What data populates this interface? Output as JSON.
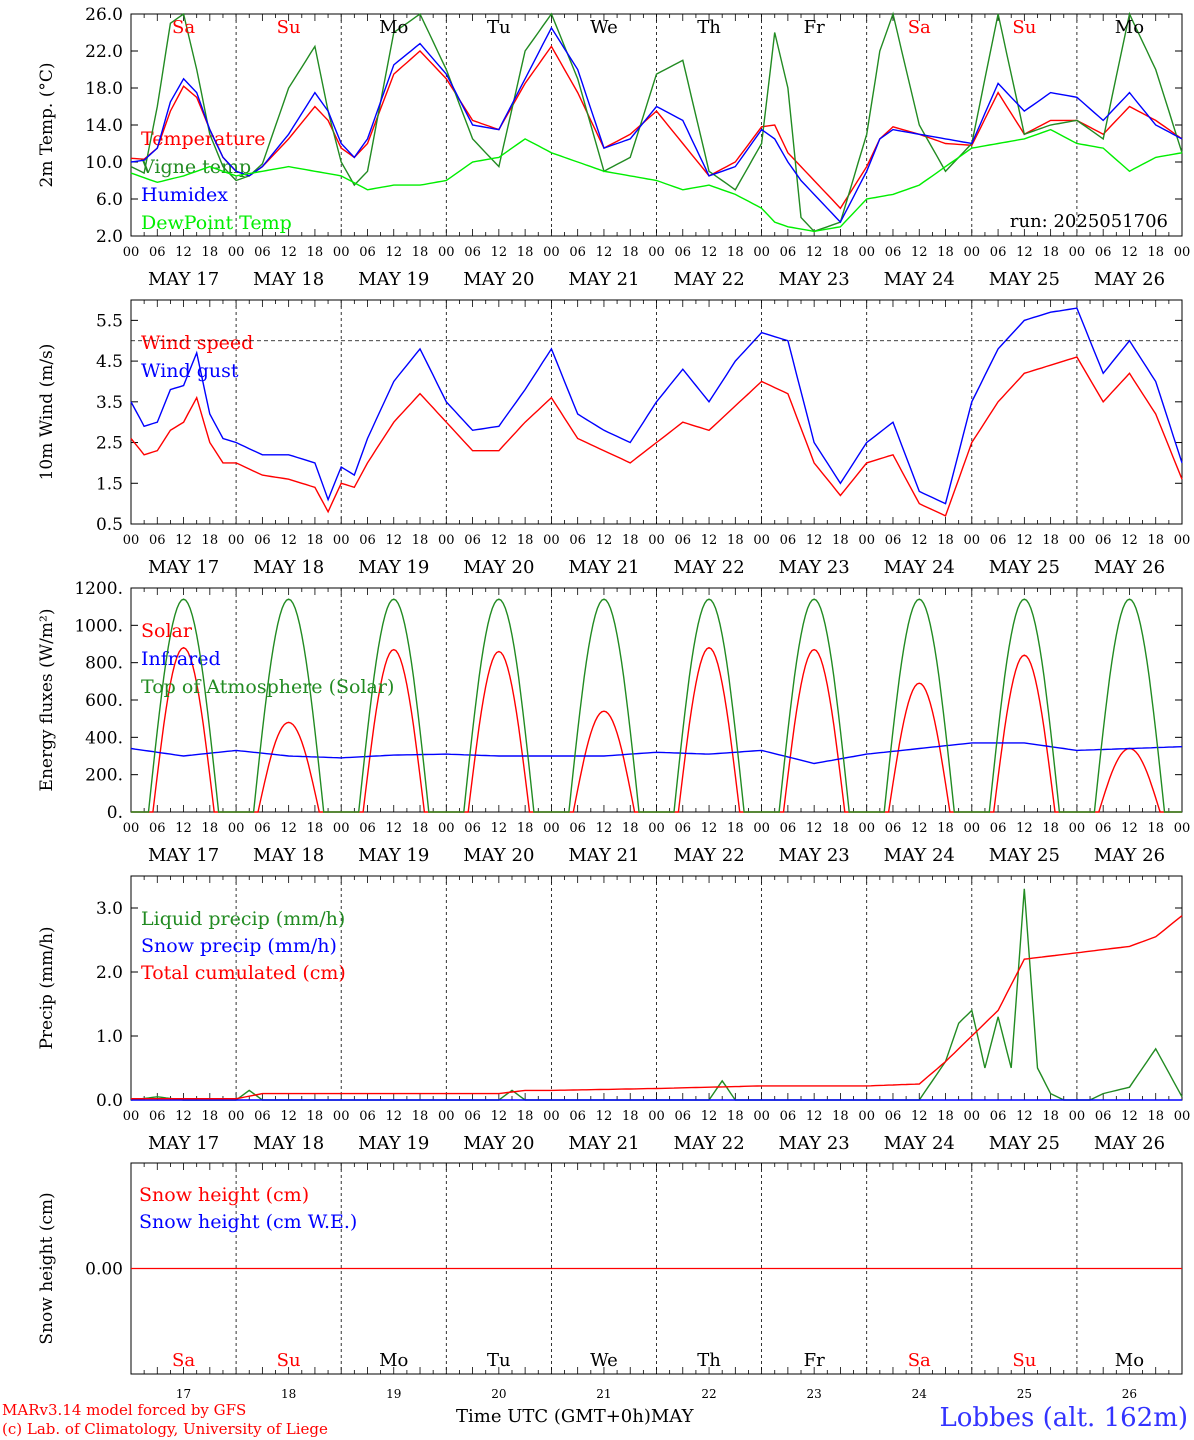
{
  "chart_data": [
    {
      "type": "line",
      "ylabel": "2m Temp. (°C)",
      "ylim": [
        2,
        26
      ],
      "yticks": [
        "26.0",
        "22.0",
        "18.0",
        "14.0",
        "10.0",
        "6.0",
        "2.0"
      ],
      "run_label": "run: 2025051706",
      "series": [
        {
          "name": "Temperature",
          "color": "#ff0000",
          "x_hours": [
            0,
            3,
            6,
            9,
            12,
            15,
            18,
            21,
            24,
            27,
            30,
            36,
            42,
            45,
            48,
            51,
            54,
            60,
            66,
            72,
            78,
            84,
            90,
            96,
            102,
            108,
            114,
            120,
            126,
            132,
            138,
            144,
            147,
            150,
            153,
            156,
            162,
            168,
            171,
            174,
            180,
            186,
            192,
            198,
            204,
            210,
            216,
            222,
            228,
            234,
            240
          ],
          "values": [
            10.4,
            10.3,
            11.5,
            15.5,
            18.2,
            17.0,
            13.5,
            10.5,
            9.0,
            8.5,
            9.5,
            12.5,
            16.0,
            14.5,
            11.5,
            10.5,
            12.0,
            19.5,
            22.0,
            19.0,
            14.5,
            13.5,
            18.5,
            22.5,
            17.5,
            11.5,
            13.0,
            15.5,
            12.0,
            8.5,
            10.0,
            13.8,
            14.0,
            11.0,
            9.5,
            8.0,
            5.0,
            9.5,
            12.5,
            13.8,
            13.0,
            12.0,
            11.8,
            17.5,
            13.0,
            14.5,
            14.5,
            13.0,
            16.0,
            14.5,
            12.5
          ]
        },
        {
          "name": "Vigne temp",
          "color": "#228b22",
          "x_hours": [
            0,
            3,
            6,
            9,
            12,
            15,
            18,
            21,
            24,
            27,
            30,
            36,
            42,
            45,
            48,
            51,
            54,
            60,
            66,
            72,
            78,
            84,
            90,
            96,
            102,
            108,
            114,
            120,
            126,
            132,
            138,
            144,
            147,
            150,
            153,
            156,
            162,
            168,
            171,
            174,
            180,
            186,
            192,
            198,
            204,
            210,
            216,
            222,
            228,
            234,
            240
          ],
          "values": [
            9.5,
            8.8,
            16.0,
            25.0,
            26.0,
            20.0,
            13.0,
            9.5,
            8.0,
            8.5,
            9.8,
            18.0,
            22.5,
            15.5,
            10.0,
            7.5,
            9.0,
            24.0,
            26.0,
            20.0,
            12.5,
            9.5,
            22.0,
            26.0,
            19.0,
            9.0,
            10.5,
            19.5,
            21.0,
            9.0,
            7.0,
            12.0,
            24.0,
            18.0,
            4.0,
            2.5,
            3.5,
            13.0,
            22.0,
            26.0,
            14.0,
            9.0,
            12.0,
            26.0,
            13.0,
            14.0,
            14.5,
            12.5,
            26.0,
            20.0,
            11.0
          ]
        },
        {
          "name": "Humidex",
          "color": "#0000ff",
          "x_hours": [
            0,
            3,
            6,
            9,
            12,
            15,
            18,
            21,
            24,
            27,
            30,
            36,
            42,
            45,
            48,
            51,
            54,
            60,
            66,
            72,
            78,
            84,
            90,
            96,
            102,
            108,
            114,
            120,
            126,
            132,
            138,
            144,
            147,
            150,
            153,
            156,
            162,
            168,
            171,
            174,
            180,
            186,
            192,
            198,
            204,
            210,
            216,
            222,
            228,
            234,
            240
          ],
          "values": [
            10.0,
            10.2,
            11.5,
            16.5,
            19.0,
            17.5,
            13.5,
            10.5,
            9.0,
            8.5,
            9.5,
            13.0,
            17.5,
            15.5,
            12.0,
            10.5,
            12.5,
            20.5,
            22.8,
            19.5,
            14.0,
            13.5,
            19.0,
            24.5,
            20.0,
            11.5,
            12.5,
            16.0,
            14.5,
            8.5,
            9.5,
            13.5,
            12.5,
            10.0,
            8.0,
            6.5,
            3.5,
            9.0,
            12.5,
            13.5,
            13.0,
            12.5,
            12.0,
            18.5,
            15.5,
            17.5,
            17.0,
            14.5,
            17.5,
            14.0,
            12.5
          ]
        },
        {
          "name": "DewPoint Temp",
          "color": "#00ee00",
          "x_hours": [
            0,
            6,
            12,
            18,
            24,
            30,
            36,
            42,
            48,
            54,
            60,
            66,
            72,
            78,
            84,
            90,
            96,
            102,
            108,
            114,
            120,
            126,
            132,
            138,
            144,
            147,
            150,
            156,
            162,
            168,
            174,
            180,
            186,
            192,
            198,
            204,
            210,
            216,
            222,
            228,
            234,
            240
          ],
          "values": [
            8.8,
            7.8,
            8.5,
            9.5,
            8.5,
            9.0,
            9.5,
            9.0,
            8.5,
            7.0,
            7.5,
            7.5,
            8.0,
            10.0,
            10.5,
            12.5,
            11.0,
            10.0,
            9.0,
            8.5,
            8.0,
            7.0,
            7.5,
            6.5,
            5.0,
            3.5,
            3.0,
            2.5,
            3.0,
            6.0,
            6.5,
            7.5,
            9.5,
            11.5,
            12.0,
            12.5,
            13.5,
            12.0,
            11.5,
            9.0,
            10.5,
            11.0
          ]
        }
      ]
    },
    {
      "type": "line",
      "ylabel": "10m Wind (m/s)",
      "ylim": [
        0.5,
        6.0
      ],
      "yticks": [
        "5.5",
        "4.5",
        "3.5",
        "2.5",
        "1.5",
        "0.5"
      ],
      "reference_line": 5.0,
      "series": [
        {
          "name": "Wind speed",
          "color": "#ff0000",
          "x_hours": [
            0,
            3,
            6,
            9,
            12,
            15,
            18,
            21,
            24,
            30,
            36,
            42,
            45,
            48,
            51,
            54,
            60,
            66,
            72,
            78,
            84,
            90,
            96,
            102,
            108,
            114,
            120,
            126,
            132,
            138,
            144,
            150,
            156,
            162,
            168,
            174,
            180,
            186,
            192,
            198,
            204,
            210,
            216,
            222,
            228,
            234,
            240
          ],
          "values": [
            2.6,
            2.2,
            2.3,
            2.8,
            3.0,
            3.6,
            2.5,
            2.0,
            2.0,
            1.7,
            1.6,
            1.4,
            0.8,
            1.5,
            1.4,
            2.0,
            3.0,
            3.7,
            3.0,
            2.3,
            2.3,
            3.0,
            3.6,
            2.6,
            2.3,
            2.0,
            2.5,
            3.0,
            2.8,
            3.4,
            4.0,
            3.7,
            2.0,
            1.2,
            2.0,
            2.2,
            1.0,
            0.7,
            2.5,
            3.5,
            4.2,
            4.4,
            4.6,
            3.5,
            4.2,
            3.2,
            1.6
          ]
        },
        {
          "name": "Wind gust",
          "color": "#0000ff",
          "x_hours": [
            0,
            3,
            6,
            9,
            12,
            15,
            18,
            21,
            24,
            30,
            36,
            42,
            45,
            48,
            51,
            54,
            60,
            66,
            72,
            78,
            84,
            90,
            96,
            102,
            108,
            114,
            120,
            126,
            132,
            138,
            144,
            150,
            156,
            162,
            168,
            174,
            180,
            186,
            192,
            198,
            204,
            210,
            216,
            222,
            228,
            234,
            240
          ],
          "values": [
            3.5,
            2.9,
            3.0,
            3.8,
            3.9,
            4.7,
            3.2,
            2.6,
            2.5,
            2.2,
            2.2,
            2.0,
            1.1,
            1.9,
            1.7,
            2.6,
            4.0,
            4.8,
            3.5,
            2.8,
            2.9,
            3.8,
            4.8,
            3.2,
            2.8,
            2.5,
            3.5,
            4.3,
            3.5,
            4.5,
            5.2,
            5.0,
            2.5,
            1.5,
            2.5,
            3.0,
            1.3,
            1.0,
            3.5,
            4.8,
            5.5,
            5.7,
            5.8,
            4.2,
            5.0,
            4.0,
            2.0
          ]
        }
      ]
    },
    {
      "type": "line",
      "ylabel": "Energy fluxes (W/m²)",
      "ylim": [
        0,
        1200
      ],
      "yticks": [
        "1200.",
        "1000.",
        "800.",
        "600.",
        "400.",
        "200.",
        "0."
      ],
      "series": [
        {
          "name": "Solar",
          "color": "#ff0000",
          "daily_peak": [
            880,
            480,
            870,
            860,
            540,
            880,
            870,
            690,
            840,
            340
          ]
        },
        {
          "name": "Infrared",
          "color": "#0000ff",
          "x_hours": [
            0,
            12,
            24,
            36,
            48,
            60,
            72,
            84,
            96,
            108,
            120,
            132,
            144,
            156,
            168,
            180,
            192,
            204,
            216,
            228,
            240
          ],
          "values": [
            340,
            300,
            330,
            300,
            290,
            305,
            310,
            300,
            300,
            300,
            320,
            310,
            330,
            260,
            310,
            340,
            370,
            370,
            330,
            340,
            350
          ]
        },
        {
          "name": "Top of Atmosphere (Solar)",
          "color": "#228b22",
          "daily_peak": 1140,
          "sunrise_hour": 4,
          "sunset_hour": 20
        }
      ]
    },
    {
      "type": "line",
      "ylabel": "Precip (mm/h)",
      "ylim": [
        0,
        3.5
      ],
      "yticks": [
        "3.0",
        "2.0",
        "1.0",
        "0.0"
      ],
      "series": [
        {
          "name": "Liquid precip (mm/h)",
          "color": "#228b22",
          "x_hours": [
            0,
            6,
            12,
            24,
            27,
            30,
            48,
            60,
            84,
            87,
            90,
            120,
            132,
            135,
            138,
            168,
            180,
            186,
            189,
            192,
            195,
            198,
            201,
            204,
            207,
            210,
            213,
            216,
            219,
            222,
            228,
            234,
            240
          ],
          "values": [
            0,
            0.05,
            0,
            0,
            0.15,
            0,
            0,
            0,
            0,
            0.15,
            0,
            0,
            0,
            0.3,
            0,
            0,
            0,
            0.6,
            1.2,
            1.4,
            0.5,
            1.3,
            0.5,
            3.3,
            0.5,
            0.1,
            0,
            0,
            0,
            0.1,
            0.2,
            0.8,
            0.05
          ]
        },
        {
          "name": "Snow precip (mm/h)",
          "color": "#0000ff",
          "x_hours": [
            0,
            240
          ],
          "values": [
            0,
            0
          ]
        },
        {
          "name": "Total cumulated (cm)",
          "color": "#ff0000",
          "x_hours": [
            0,
            24,
            30,
            48,
            84,
            90,
            96,
            120,
            132,
            144,
            168,
            180,
            186,
            192,
            198,
            201,
            204,
            210,
            216,
            228,
            234,
            240
          ],
          "values": [
            0.02,
            0.02,
            0.1,
            0.1,
            0.1,
            0.15,
            0.15,
            0.18,
            0.2,
            0.22,
            0.22,
            0.25,
            0.6,
            1.0,
            1.4,
            1.8,
            2.2,
            2.25,
            2.3,
            2.4,
            2.55,
            2.88
          ]
        }
      ]
    },
    {
      "type": "line",
      "ylabel": "Snow height (cm)",
      "ytick": "0.00",
      "series": [
        {
          "name": "Snow height (cm)",
          "color": "#ff0000",
          "values": [
            0,
            0
          ]
        },
        {
          "name": "Snow height (cm W.E.)",
          "color": "#0000ff",
          "values": [
            0,
            0
          ]
        }
      ]
    }
  ],
  "axis": {
    "hour_ticks": [
      "00",
      "06",
      "12",
      "18"
    ],
    "day_labels": [
      "MAY 17",
      "MAY 18",
      "MAY 19",
      "MAY 20",
      "MAY 21",
      "MAY 22",
      "MAY 23",
      "MAY 24",
      "MAY 25",
      "MAY 26"
    ],
    "weekdays": [
      {
        "label": "Sa",
        "color": "#ff0000"
      },
      {
        "label": "Su",
        "color": "#ff0000"
      },
      {
        "label": "Mo",
        "color": "#000000"
      },
      {
        "label": "Tu",
        "color": "#000000"
      },
      {
        "label": "We",
        "color": "#000000"
      },
      {
        "label": "Th",
        "color": "#000000"
      },
      {
        "label": "Fr",
        "color": "#000000"
      },
      {
        "label": "Sa",
        "color": "#ff0000"
      },
      {
        "label": "Su",
        "color": "#ff0000"
      },
      {
        "label": "Mo",
        "color": "#000000"
      }
    ],
    "bottom_day_numbers": [
      "17",
      "18",
      "19",
      "20",
      "21",
      "22",
      "23",
      "24",
      "25",
      "26"
    ],
    "xlabel": "Time UTC (GMT+0h)",
    "month": "MAY"
  },
  "footer": {
    "model_line": "MARv3.14 model forced by GFS",
    "credit_line": "(c) Lab. of Climatology, University of Liege",
    "location": "Lobbes (alt. 162m)"
  },
  "colors": {
    "red": "#ff0000",
    "blue": "#0000ff",
    "green": "#228b22",
    "lightgreen": "#00ee00"
  }
}
